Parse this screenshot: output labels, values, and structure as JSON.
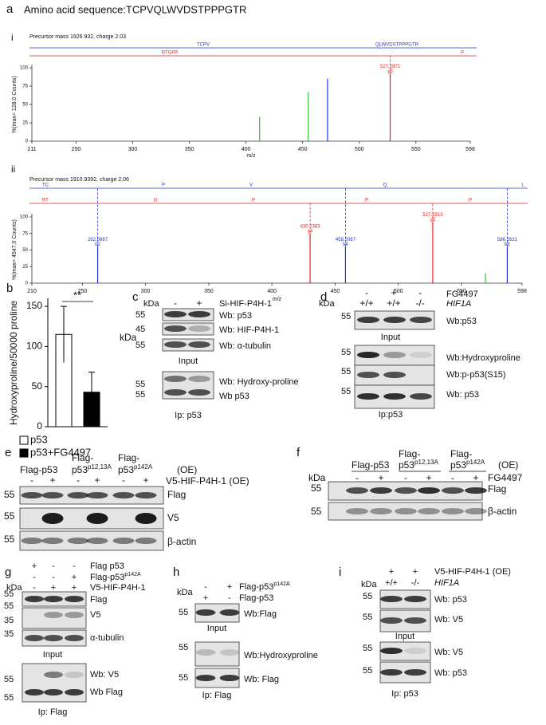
{
  "panel_a": {
    "label": "a",
    "title": "Amino acid sequence:TCPVQLWVDSTPPPGTR",
    "spectra": [
      {
        "type": "spectrum",
        "label": "i",
        "precursor": "Precursor mass 1926.932, charge 2.03",
        "blue_fragments": [
          "TCPV",
          "QLWVDSTPPPGTR"
        ],
        "red_fragments": [
          "RTGPP",
          "P"
        ],
        "y_axis_label": "%(max= 128.0 Counts)",
        "x_axis_label": "m/z",
        "xlim": [
          211,
          598
        ],
        "xticks": [
          211,
          250,
          300,
          350,
          400,
          450,
          500,
          550,
          598
        ],
        "ylim": [
          0,
          100
        ],
        "yticks": [
          0,
          25,
          50,
          75,
          100
        ],
        "peaks": [
          {
            "mz": 412,
            "intensity": 33,
            "color": "#33bb33"
          },
          {
            "mz": 455,
            "intensity": 67,
            "color": "#33bb33"
          },
          {
            "mz": 472,
            "intensity": 85,
            "color": "#2233dd"
          },
          {
            "mz": 527.2971,
            "intensity": 92,
            "color": "#dd2222",
            "ion": "y5"
          }
        ]
      },
      {
        "type": "spectrum",
        "label": "ii",
        "precursor": "Precursor mass 1910.9392, charge 2.06",
        "blue_fragments": [
          "TC",
          "P",
          "V",
          "Q",
          "L"
        ],
        "red_fragments": [
          "RT",
          "G",
          "P",
          "P",
          "P"
        ],
        "y_axis_label": "%(max= 4547.0 Counts)",
        "x_axis_label": "m/z",
        "xlim": [
          210,
          598
        ],
        "xticks": [
          210,
          250,
          300,
          350,
          400,
          450,
          500,
          550,
          598
        ],
        "ylim": [
          0,
          100
        ],
        "yticks": [
          0,
          25,
          50,
          75,
          100
        ],
        "peaks": [
          {
            "mz": 262.0887,
            "intensity": 55,
            "color": "#2233dd",
            "ion": "b2"
          },
          {
            "mz": 430.2383,
            "intensity": 75,
            "color": "#dd2222",
            "ion": "y4"
          },
          {
            "mz": 458.2067,
            "intensity": 55,
            "color": "#2233dd",
            "ion": "b4"
          },
          {
            "mz": 527.2913,
            "intensity": 92,
            "color": "#dd2222",
            "ion": "y5"
          },
          {
            "mz": 569,
            "intensity": 15,
            "color": "#33bb33"
          },
          {
            "mz": 586.2631,
            "intensity": 55,
            "color": "#2233dd",
            "ion": "b5"
          }
        ]
      }
    ]
  },
  "panel_b": {
    "label": "b",
    "type": "bar",
    "y_axis_label": "Hydroxyproline/50000 proline",
    "categories": [
      "p53",
      "p53+FG4497"
    ],
    "values": [
      115,
      43
    ],
    "errors": [
      35,
      25
    ],
    "colors": [
      "#ffffff",
      "#000000"
    ],
    "ylim": [
      0,
      160
    ],
    "yticks": [
      0,
      50,
      100,
      150
    ],
    "annotation": "**",
    "note": "kDa"
  },
  "panel_c": {
    "label": "c",
    "kda": "kDa",
    "lanes": [
      "-",
      "+"
    ],
    "treatment": "Si-HIF-P4H-1",
    "markers": [
      55,
      45,
      55,
      55,
      55
    ],
    "blots": [
      "Wb: p53",
      "Wb: HIF-P4H-1",
      "Wb: α-tubulin",
      "Wb: Hydroxy-proline",
      "Wb p53"
    ],
    "captions": [
      "Input",
      "Ip: p53"
    ]
  },
  "panel_d": {
    "label": "d",
    "kda": "kDa",
    "treatment_lanes": [
      "-",
      "+",
      "-"
    ],
    "treatment": "FG4497",
    "genotype_lanes": [
      "+/+",
      "+/+",
      "-/-"
    ],
    "genotype": "HIF1A",
    "markers": [
      55,
      55,
      55,
      55
    ],
    "blots": [
      "Wb:p53",
      "Wb:Hydroxyproline",
      "Wb:p-p53(S15)",
      "Wb: p53"
    ],
    "captions": [
      "Input",
      "Ip:p53"
    ]
  },
  "panel_e": {
    "label": "e",
    "constructs": [
      {
        "lines": [
          "Flag-p53"
        ]
      },
      {
        "lines": [
          "Flag-",
          "p53"
        ],
        "superscript": "p12,13A"
      },
      {
        "lines": [
          "Flag-",
          "p53"
        ],
        "superscript": "p142A"
      }
    ],
    "construct_note": "(OE)",
    "lanes": [
      "-",
      "+",
      "-",
      "+",
      "-",
      "+"
    ],
    "treatment": "V5-HIF-P4H-1 (OE)",
    "markers": [
      55,
      55,
      55
    ],
    "blots": [
      "Flag",
      "V5",
      "β-actin"
    ]
  },
  "panel_f": {
    "label": "f",
    "kda": "kDa",
    "constructs": [
      {
        "lines": [
          "Flag-p53"
        ]
      },
      {
        "lines": [
          "Flag-",
          "p53"
        ],
        "superscript": "p12,13A"
      },
      {
        "lines": [
          "Flag-",
          "p53"
        ],
        "superscript": "p142A"
      }
    ],
    "construct_note": "(OE)",
    "lanes": [
      "-",
      "+",
      "-",
      "+",
      "-",
      "+"
    ],
    "treatment": "FG4497",
    "markers": [
      55,
      55
    ],
    "blots": [
      "Flag",
      "β-actin"
    ]
  },
  "panel_g": {
    "label": "g",
    "kda": "kDa",
    "rows": [
      {
        "lanes": [
          "+",
          "-",
          "-"
        ],
        "name": "Flag p53"
      },
      {
        "lanes": [
          "-",
          "-",
          "+"
        ],
        "name": "Flag-p53",
        "superscript": "p142A"
      },
      {
        "lanes": [
          "-",
          "+",
          "+"
        ],
        "name": "V5-HIF-P4H-1"
      }
    ],
    "markers": [
      55,
      55,
      35,
      35,
      55,
      55
    ],
    "blots": [
      "Flag",
      "V5",
      "α-tubulin",
      "Wb: V5",
      "Wb Flag"
    ],
    "captions": [
      "Input",
      "Ip: Flag"
    ]
  },
  "panel_h": {
    "label": "h",
    "kda": "kDa",
    "rows": [
      {
        "lanes": [
          "-",
          "+"
        ],
        "name": "Flag-p53",
        "superscript": "p142A"
      },
      {
        "lanes": [
          "+",
          "-"
        ],
        "name": "Flag-p53"
      }
    ],
    "markers": [
      55,
      55,
      55
    ],
    "blots": [
      "Wb:Flag",
      "Wb:Hydroxyproline",
      "Wb: Flag"
    ],
    "captions": [
      "Input",
      "Ip: Flag"
    ]
  },
  "panel_i": {
    "label": "i",
    "kda": "kDa",
    "rows": [
      {
        "lanes": [
          "+",
          "+"
        ],
        "name": "V5-HIF-P4H-1 (OE)"
      },
      {
        "lanes": [
          "+/+",
          "-/-"
        ],
        "name": "HIF1A"
      }
    ],
    "markers": [
      55,
      55,
      55,
      55
    ],
    "blots": [
      "Wb: p53",
      "Wb: V5",
      "Wb: V5",
      "Wb: p53"
    ],
    "captions": [
      "Input",
      "Ip: p53"
    ]
  }
}
